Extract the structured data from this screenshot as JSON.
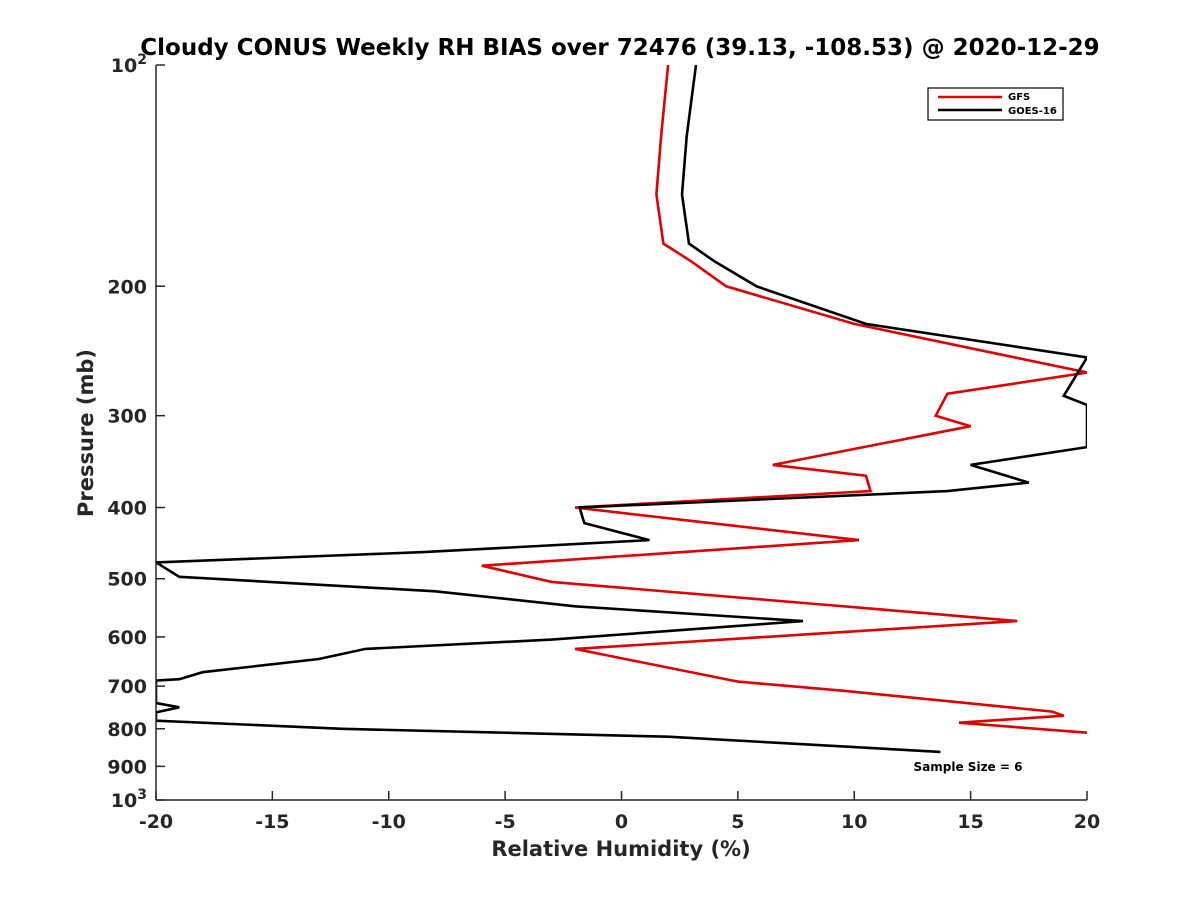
{
  "chart_data": {
    "type": "line",
    "title": "Cloudy CONUS Weekly RH BIAS over 72476 (39.13, -108.53) @ 2020-12-29",
    "xlabel": "Relative Humidity (%)",
    "ylabel": "Pressure (mb)",
    "xlim": [
      -20,
      20
    ],
    "ylim": [
      100,
      1000
    ],
    "y_scale": "log",
    "y_reversed": true,
    "grid": false,
    "legend_position": "top-right",
    "x_ticks": [
      -20,
      -15,
      -10,
      -5,
      0,
      5,
      10,
      15,
      20
    ],
    "x_tick_labels": [
      "-20",
      "-15",
      "-10",
      "-5",
      "0",
      "5",
      "10",
      "15",
      "20"
    ],
    "y_ticks": [
      100,
      200,
      300,
      400,
      500,
      600,
      700,
      800,
      900,
      1000
    ],
    "y_tick_labels": [
      {
        "base": "10",
        "exp": "2"
      },
      {
        "base": "200",
        "exp": ""
      },
      {
        "base": "300",
        "exp": ""
      },
      {
        "base": "400",
        "exp": ""
      },
      {
        "base": "500",
        "exp": ""
      },
      {
        "base": "600",
        "exp": ""
      },
      {
        "base": "700",
        "exp": ""
      },
      {
        "base": "800",
        "exp": ""
      },
      {
        "base": "900",
        "exp": ""
      },
      {
        "base": "10",
        "exp": "3"
      }
    ],
    "annotation": "Sample Size = 6",
    "series": [
      {
        "name": "GFS",
        "color": "#e00000",
        "points": [
          [
            2.0,
            100
          ],
          [
            1.7,
            125
          ],
          [
            1.5,
            150
          ],
          [
            1.8,
            175
          ],
          [
            3.0,
            185
          ],
          [
            4.5,
            200
          ],
          [
            10.0,
            225
          ],
          [
            20.0,
            262
          ],
          [
            14.0,
            280
          ],
          [
            13.5,
            300
          ],
          [
            15.0,
            310
          ],
          [
            6.5,
            350
          ],
          [
            10.5,
            362
          ],
          [
            10.7,
            380
          ],
          [
            -2.0,
            400
          ],
          [
            10.2,
            443
          ],
          [
            -6.0,
            480
          ],
          [
            -3.0,
            505
          ],
          [
            12.5,
            555
          ],
          [
            17.0,
            571
          ],
          [
            -2.0,
            623
          ],
          [
            5.0,
            690
          ],
          [
            9.5,
            710
          ],
          [
            18.5,
            758
          ],
          [
            19.0,
            768
          ],
          [
            14.5,
            785
          ],
          [
            20.0,
            810
          ]
        ]
      },
      {
        "name": "GOES-16",
        "color": "#000000",
        "points": [
          [
            3.2,
            100
          ],
          [
            2.8,
            125
          ],
          [
            2.6,
            150
          ],
          [
            2.9,
            175
          ],
          [
            4.0,
            185
          ],
          [
            5.8,
            200
          ],
          [
            10.5,
            225
          ],
          [
            20.0,
            250
          ],
          [
            19.0,
            282
          ],
          [
            20.0,
            290
          ],
          [
            20.0,
            331
          ],
          [
            15.0,
            350
          ],
          [
            17.5,
            370
          ],
          [
            14.0,
            380
          ],
          [
            -1.8,
            400
          ],
          [
            -1.6,
            420
          ],
          [
            1.2,
            443
          ],
          [
            -8.5,
            460
          ],
          [
            -20.0,
            475
          ],
          [
            -19.0,
            497
          ],
          [
            -8.0,
            520
          ],
          [
            -2.0,
            545
          ],
          [
            7.8,
            571
          ],
          [
            -3.0,
            605
          ],
          [
            -11.0,
            623
          ],
          [
            -13.0,
            643
          ],
          [
            -18.0,
            670
          ],
          [
            -19.0,
            685
          ],
          [
            -20.0,
            688
          ],
          [
            -20.0,
            738
          ],
          [
            -19.0,
            748
          ],
          [
            -20.0,
            760
          ],
          [
            -20.0,
            780
          ],
          [
            -12.0,
            800
          ],
          [
            2.0,
            820
          ],
          [
            13.7,
            860
          ]
        ]
      }
    ]
  }
}
